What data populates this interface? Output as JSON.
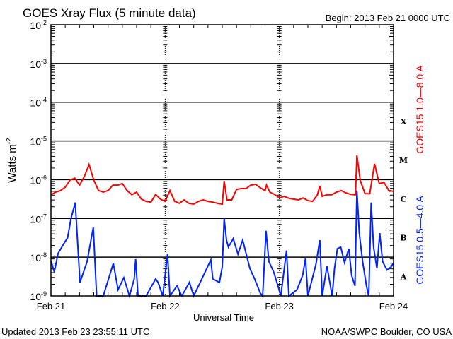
{
  "chart_data": {
    "type": "line",
    "title": "GOES Xray Flux (5 minute data)",
    "begin_label": "Begin:  2013 Feb 21 0000 UTC",
    "xlabel": "Universal Time",
    "ylabel": "Watts m",
    "ylabel_sup": "-2",
    "x_unit": "hours since 2013 Feb 21 0000 UTC",
    "xlim": [
      0,
      72
    ],
    "x_ticks": [
      {
        "hour": 0,
        "label": "Feb 21"
      },
      {
        "hour": 24,
        "label": "Feb 22"
      },
      {
        "hour": 48,
        "label": "Feb 23"
      },
      {
        "hour": 72,
        "label": "Feb 24"
      }
    ],
    "y_scale": "log",
    "ylim_log10": [
      -9,
      -2
    ],
    "y_ticks": [
      {
        "exp": -2,
        "base": "10",
        "sup": "-2"
      },
      {
        "exp": -3,
        "base": "10",
        "sup": "-3"
      },
      {
        "exp": -4,
        "base": "10",
        "sup": "-4"
      },
      {
        "exp": -5,
        "base": "10",
        "sup": "-5"
      },
      {
        "exp": -6,
        "base": "10",
        "sup": "-6"
      },
      {
        "exp": -7,
        "base": "10",
        "sup": "-7"
      },
      {
        "exp": -8,
        "base": "10",
        "sup": "-8"
      },
      {
        "exp": -9,
        "base": "10",
        "sup": "-9"
      }
    ],
    "flare_classes": [
      {
        "label": "X",
        "exp": -4
      },
      {
        "label": "M",
        "exp": -5
      },
      {
        "label": "C",
        "exp": -6
      },
      {
        "label": "B",
        "exp": -7
      },
      {
        "label": "A",
        "exp": -8
      }
    ],
    "series": [
      {
        "name": "GOES15 1.0—8.0 A",
        "color": "#ff0000",
        "hours": [
          0,
          1,
          2,
          3,
          4,
          5,
          6,
          7,
          8,
          9,
          10,
          11,
          12,
          13,
          14,
          15,
          16,
          17,
          18,
          19,
          20,
          21,
          22,
          23,
          24,
          25,
          26,
          27,
          28,
          29,
          30,
          31,
          32,
          33,
          34,
          35,
          36,
          36.4,
          37,
          38,
          39,
          40,
          41,
          42,
          43,
          44,
          45,
          45.3,
          46,
          47,
          48,
          49,
          50,
          51,
          52,
          53,
          54,
          55,
          56,
          56.5,
          57,
          58,
          59,
          60,
          61,
          62,
          63,
          64,
          64.3,
          65,
          66,
          67,
          68,
          69,
          70,
          71,
          72
        ],
        "log10_flux": [
          -6.39,
          -6.32,
          -6.28,
          -6.19,
          -6.01,
          -5.96,
          -6.14,
          -5.92,
          -5.61,
          -6.01,
          -6.28,
          -6.32,
          -6.28,
          -6.14,
          -6.14,
          -6.1,
          -6.28,
          -6.39,
          -6.32,
          -6.5,
          -6.56,
          -6.58,
          -6.38,
          -6.5,
          -6.56,
          -6.28,
          -6.56,
          -6.61,
          -6.52,
          -6.61,
          -6.63,
          -6.56,
          -6.52,
          -6.56,
          -6.58,
          -6.61,
          -6.63,
          -6.03,
          -6.52,
          -6.52,
          -6.25,
          -6.23,
          -6.23,
          -6.14,
          -6.12,
          -6.21,
          -6.28,
          -6.14,
          -6.32,
          -6.38,
          -6.47,
          -6.43,
          -6.48,
          -6.5,
          -6.52,
          -6.47,
          -6.54,
          -6.56,
          -6.39,
          -6.16,
          -6.43,
          -6.39,
          -6.39,
          -6.32,
          -6.28,
          -6.34,
          -6.38,
          -6.39,
          -5.37,
          -6.01,
          -6.36,
          -6.36,
          -5.59,
          -6.1,
          -6.07,
          -6.28,
          -6.3
        ]
      },
      {
        "name": "GOES15 0.5—4.0 A",
        "color": "#0022ff",
        "hours": [
          0,
          0.7,
          1.5,
          2.7,
          3.5,
          4.2,
          5.1,
          6.1,
          7.6,
          8.9,
          9.6,
          11,
          13.1,
          14.1,
          15.3,
          16.5,
          17.5,
          17.8,
          18.3,
          20,
          22,
          22.5,
          23.5,
          24.5,
          25,
          26.5,
          27.5,
          29.1,
          30,
          33.6,
          34,
          35.4,
          36,
          36.4,
          36.9,
          37.3,
          38.3,
          39.3,
          40.3,
          41.8,
          42.8,
          44,
          44.5,
          45.2,
          45.8,
          46.8,
          47.7,
          48.3,
          49.5,
          50,
          51.7,
          52.9,
          53.5,
          54,
          55.7,
          56.5,
          57,
          58,
          59.1,
          59.6,
          60.2,
          60.9,
          61.7,
          62.6,
          63.2,
          63.9,
          64.3,
          64.8,
          65.5,
          66.3,
          66.8,
          67.3,
          67.8,
          68.5,
          69.1,
          69.7,
          70.6,
          71.5,
          72
        ],
        "log10_flux": [
          -8.1,
          -8.38,
          -7.9,
          -7.65,
          -7.5,
          -7.01,
          -6.59,
          -8.65,
          -8.11,
          -7.23,
          -9.0,
          -9.0,
          -8.16,
          -8.84,
          -8.53,
          -9.0,
          -8.56,
          -8.05,
          -9.0,
          -9.0,
          -8.56,
          -8.65,
          -9.0,
          -7.92,
          -9.0,
          -8.74,
          -9.0,
          -8.65,
          -9.0,
          -8.07,
          -8.56,
          -8.65,
          -8.25,
          -7.0,
          -7.56,
          -7.74,
          -7.52,
          -7.92,
          -7.56,
          -8.29,
          -8.56,
          -8.93,
          -9.0,
          -7.32,
          -8.11,
          -8.38,
          -8.74,
          -9.0,
          -7.83,
          -9.0,
          -8.84,
          -8.47,
          -8.03,
          -9.0,
          -8.18,
          -7.56,
          -9.0,
          -8.23,
          -9.0,
          -8.29,
          -7.78,
          -7.74,
          -8.14,
          -7.78,
          -8.47,
          -8.74,
          -6.28,
          -7.38,
          -8.11,
          -8.74,
          -9.0,
          -6.59,
          -7.74,
          -8.29,
          -7.38,
          -8.11,
          -8.33,
          -8.25,
          -8.14
        ]
      }
    ]
  },
  "footer": {
    "updated": "Updated 2013 Feb 23 23:55:11 UTC",
    "credit": "NOAA/SWPC Boulder, CO USA"
  }
}
